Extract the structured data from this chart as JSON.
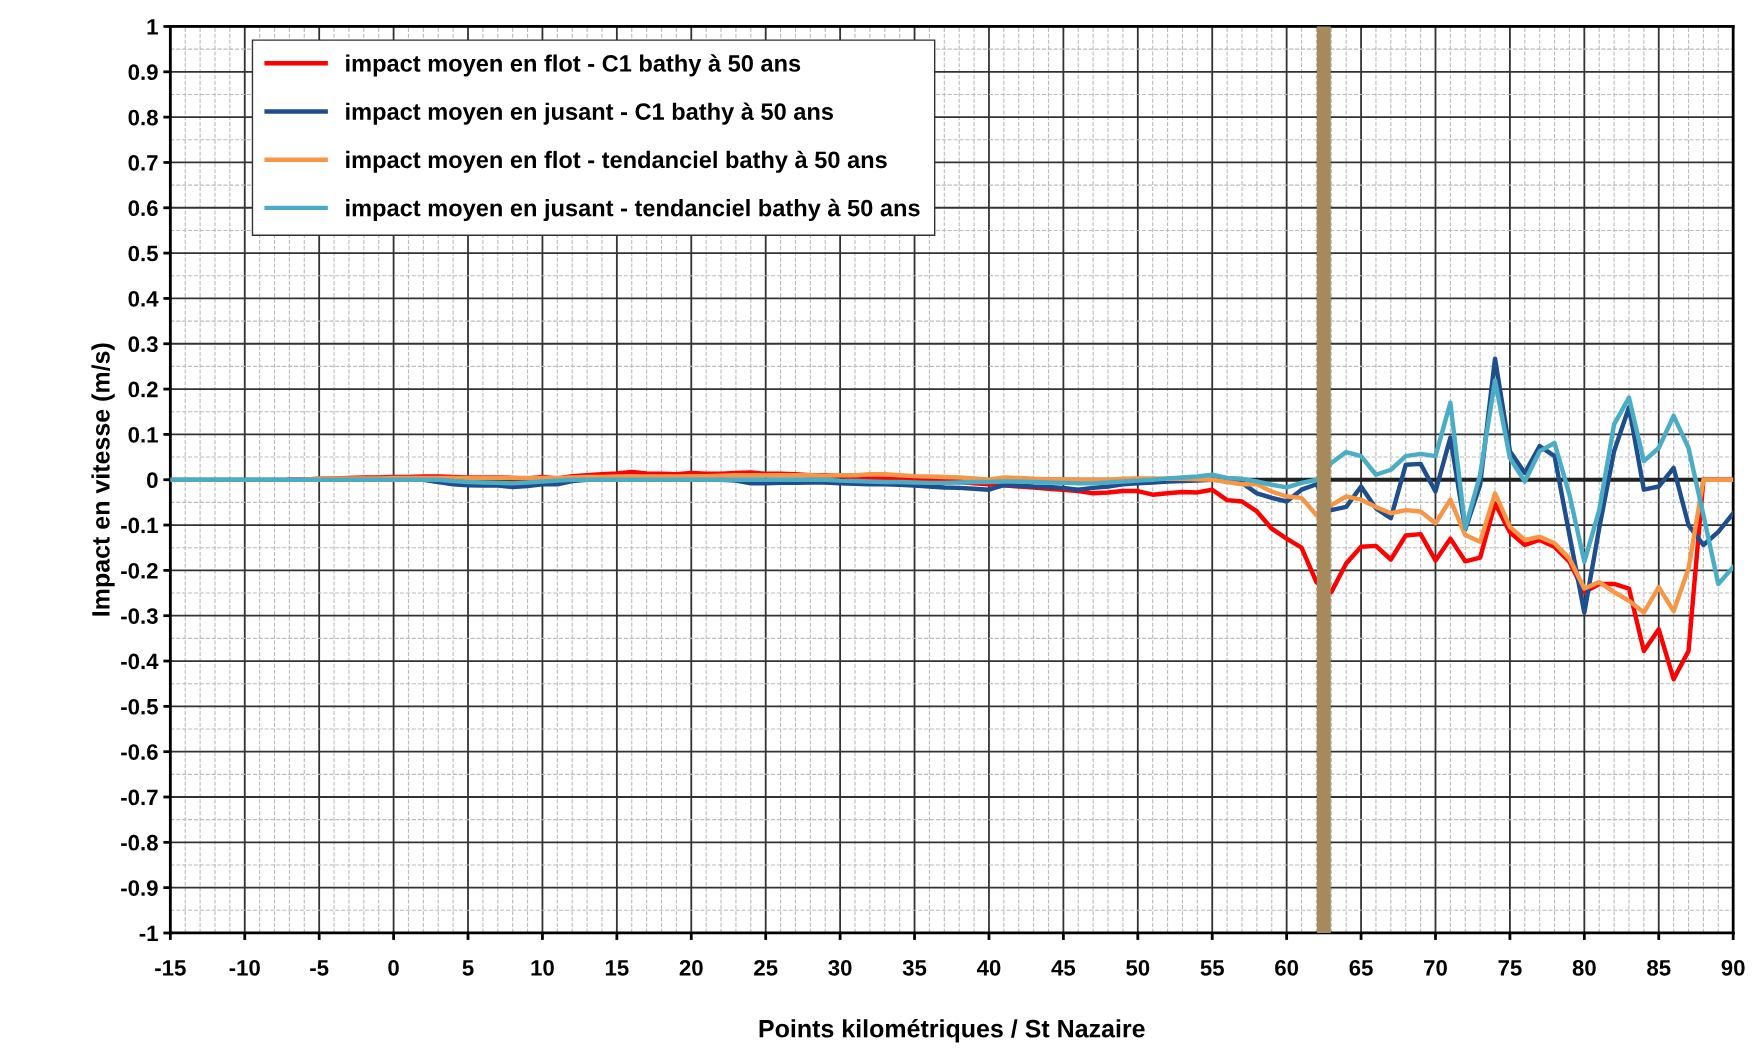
{
  "chart_data": {
    "type": "line",
    "xlabel": "Points kilométriques / St Nazaire",
    "ylabel": "Impact en vitesse (m/s)",
    "x": [
      -15,
      -14,
      -13,
      -12,
      -11,
      -10,
      -9,
      -8,
      -7,
      -6,
      -5,
      -4,
      -3,
      -2,
      -1,
      0,
      1,
      2,
      3,
      4,
      5,
      6,
      7,
      8,
      9,
      10,
      11,
      12,
      13,
      14,
      15,
      16,
      17,
      18,
      19,
      20,
      21,
      22,
      23,
      24,
      25,
      26,
      27,
      28,
      29,
      30,
      31,
      32,
      33,
      34,
      35,
      36,
      37,
      38,
      39,
      40,
      41,
      42,
      43,
      44,
      45,
      46,
      47,
      48,
      49,
      50,
      51,
      52,
      53,
      54,
      55,
      56,
      57,
      58,
      59,
      60,
      61,
      62,
      63,
      64,
      65,
      66,
      67,
      68,
      69,
      70,
      71,
      72,
      73,
      74,
      75,
      76,
      77,
      78,
      79,
      80,
      81,
      82,
      83,
      84,
      85,
      86,
      87,
      88,
      89,
      90
    ],
    "series": [
      {
        "name": "impact moyen en flot - C1 bathy à 50 ans",
        "color": "#ff0000",
        "values": [
          null,
          null,
          null,
          null,
          null,
          null,
          null,
          null,
          0,
          0,
          0.002,
          0.003,
          0.004,
          0.005,
          0.005,
          0.006,
          0.006,
          0.007,
          0.007,
          0.006,
          0.005,
          0.005,
          0.005,
          0.004,
          0.003,
          0.006,
          0.003,
          0.008,
          0.01,
          0.012,
          0.014,
          0.017,
          0.014,
          0.013,
          0.012,
          0.015,
          0.013,
          0.013,
          0.015,
          0.016,
          0.013,
          0.013,
          0.012,
          0.01,
          0.01,
          0.008,
          0.005,
          0.003,
          0.003,
          0.002,
          0.0,
          -0.002,
          -0.003,
          -0.005,
          -0.008,
          -0.01,
          -0.012,
          -0.015,
          -0.017,
          -0.02,
          -0.022,
          -0.025,
          -0.03,
          -0.028,
          -0.025,
          -0.025,
          -0.033,
          -0.03,
          -0.027,
          -0.028,
          -0.022,
          -0.045,
          -0.048,
          -0.07,
          -0.108,
          -0.13,
          -0.15,
          -0.226,
          -0.248,
          -0.185,
          -0.148,
          -0.146,
          -0.176,
          -0.123,
          -0.12,
          -0.178,
          -0.13,
          -0.18,
          -0.172,
          -0.052,
          -0.116,
          -0.144,
          -0.133,
          -0.148,
          -0.181,
          -0.248,
          -0.23,
          -0.23,
          -0.24,
          -0.378,
          -0.33,
          -0.44,
          -0.378,
          0,
          0,
          0
        ]
      },
      {
        "name": "impact moyen en jusant - C1 bathy à 50 ans",
        "color": "#1f4e8c",
        "values": [
          null,
          null,
          null,
          null,
          null,
          null,
          null,
          null,
          null,
          null,
          null,
          null,
          null,
          null,
          null,
          null,
          0,
          0,
          -0.005,
          -0.01,
          -0.012,
          -0.013,
          -0.013,
          -0.016,
          -0.014,
          -0.01,
          -0.01,
          -0.003,
          0,
          0,
          0,
          0,
          0,
          0,
          0,
          0,
          0,
          0,
          -0.002,
          -0.008,
          -0.008,
          -0.007,
          -0.007,
          -0.006,
          -0.006,
          -0.008,
          -0.009,
          -0.01,
          -0.01,
          -0.011,
          -0.013,
          -0.015,
          -0.017,
          -0.018,
          -0.02,
          -0.022,
          -0.012,
          -0.013,
          -0.015,
          -0.016,
          -0.018,
          -0.022,
          -0.018,
          -0.015,
          -0.01,
          -0.008,
          -0.006,
          -0.004,
          -0.003,
          -0.002,
          0,
          0,
          -0.007,
          -0.03,
          -0.04,
          -0.048,
          -0.022,
          -0.01,
          -0.067,
          -0.06,
          -0.015,
          -0.063,
          -0.085,
          0.033,
          0.035,
          -0.026,
          0.093,
          -0.11,
          -0.011,
          0.267,
          0.063,
          0.015,
          0.074,
          0.052,
          -0.122,
          -0.293,
          -0.107,
          0.063,
          0.16,
          -0.022,
          -0.015,
          0.026,
          -0.1,
          -0.144,
          -0.115,
          -0.074
        ]
      },
      {
        "name": "impact moyen en flot - tendanciel bathy à 50 ans",
        "color": "#f79646",
        "values": [
          null,
          null,
          null,
          null,
          null,
          null,
          null,
          null,
          null,
          0,
          0.003,
          0.003,
          0.003,
          0.003,
          0.003,
          0.004,
          0.004,
          0.004,
          0.004,
          0.004,
          0.004,
          0.004,
          0.004,
          0.004,
          0.004,
          0.004,
          0.004,
          0.005,
          0.006,
          0.006,
          0.007,
          0.007,
          0.007,
          0.007,
          0.007,
          0.008,
          0.008,
          0.009,
          0.01,
          0.01,
          0.01,
          0.01,
          0.01,
          0.01,
          0.009,
          0.01,
          0.01,
          0.012,
          0.012,
          0.01,
          0.008,
          0.007,
          0.006,
          0.005,
          0.003,
          0,
          0.005,
          0.004,
          0.002,
          0.001,
          0.001,
          0,
          0,
          0,
          0.002,
          0.003,
          0.003,
          0.002,
          0.002,
          0.001,
          0,
          -0.005,
          -0.01,
          -0.01,
          -0.026,
          -0.037,
          -0.04,
          -0.078,
          -0.056,
          -0.037,
          -0.044,
          -0.06,
          -0.074,
          -0.067,
          -0.07,
          -0.096,
          -0.044,
          -0.122,
          -0.137,
          -0.03,
          -0.104,
          -0.133,
          -0.126,
          -0.14,
          -0.174,
          -0.24,
          -0.226,
          -0.248,
          -0.267,
          -0.293,
          -0.237,
          -0.29,
          -0.196,
          0,
          0,
          0
        ]
      },
      {
        "name": "impact moyen en jusant - tendanciel bathy à 50 ans",
        "color": "#4bacc6",
        "values": [
          0,
          0,
          0,
          0,
          0,
          0,
          0,
          0,
          0,
          0,
          0,
          0,
          0,
          0,
          0,
          0,
          0,
          0,
          0,
          -0.003,
          -0.005,
          -0.006,
          -0.007,
          -0.008,
          -0.006,
          -0.004,
          -0.002,
          0,
          0,
          0,
          0,
          0,
          0,
          0,
          0,
          0,
          0,
          0,
          0,
          0,
          0,
          0,
          0,
          0,
          0,
          -0.002,
          -0.003,
          -0.004,
          -0.005,
          -0.005,
          -0.006,
          -0.007,
          -0.007,
          -0.006,
          -0.005,
          -0.005,
          -0.004,
          -0.004,
          -0.005,
          -0.006,
          -0.007,
          -0.008,
          -0.008,
          -0.006,
          -0.004,
          -0.002,
          0,
          0.003,
          0.005,
          0.007,
          0.011,
          0.004,
          0.002,
          -0.004,
          -0.011,
          -0.017,
          -0.007,
          0,
          0.037,
          0.061,
          0.052,
          0.011,
          0.022,
          0.052,
          0.057,
          0.052,
          0.17,
          -0.107,
          0.011,
          0.219,
          0.048,
          -0.004,
          0.063,
          0.081,
          -0.033,
          -0.181,
          -0.067,
          0.122,
          0.181,
          0.041,
          0.07,
          0.141,
          0.07,
          -0.078,
          -0.23,
          -0.193
        ]
      }
    ],
    "xlim": [
      -15,
      90
    ],
    "xticks": [
      -15,
      -10,
      -5,
      0,
      5,
      10,
      15,
      20,
      25,
      30,
      35,
      40,
      45,
      50,
      55,
      60,
      65,
      70,
      75,
      80,
      85,
      90
    ],
    "ylim": [
      -1,
      1
    ],
    "yticks": [
      -1,
      -0.9,
      -0.8,
      -0.7,
      -0.6,
      -0.5,
      -0.4,
      -0.3,
      -0.2,
      -0.1,
      0,
      0.1,
      0.2,
      0.3,
      0.4,
      0.5,
      0.6,
      0.7,
      0.8,
      0.9,
      1
    ],
    "ref_lines": [
      {
        "axis": "y",
        "value": 0,
        "color": "#222222"
      },
      {
        "axis": "x",
        "value": 62.5,
        "color": "#a68a5b"
      }
    ],
    "grid": true,
    "legend": "top left",
    "marker": "none",
    "line_style": "solid"
  }
}
